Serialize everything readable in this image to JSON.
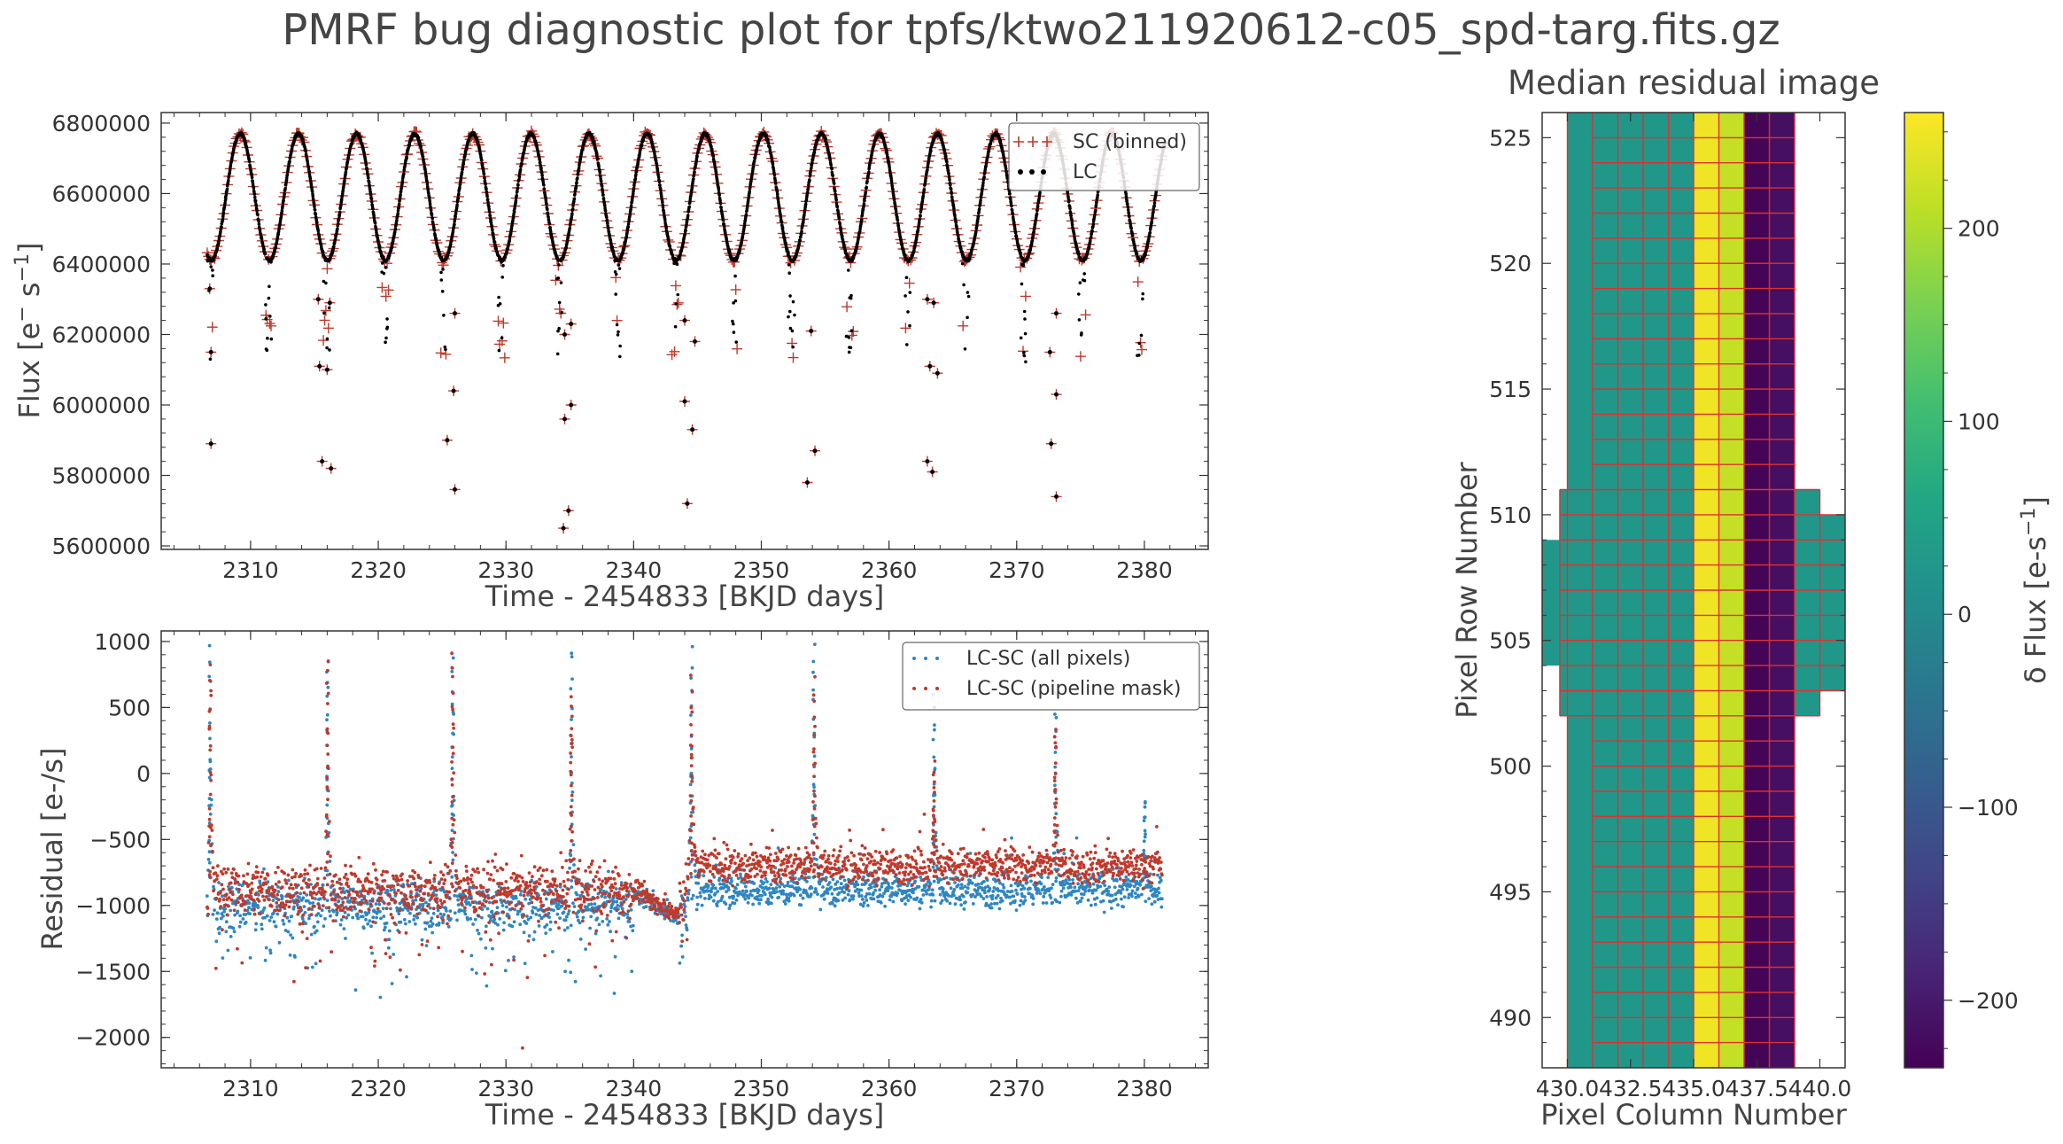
{
  "figure": {
    "suptitle": "PMRF bug diagnostic plot for tpfs/ktwo211920612-c05_spd-targ.fits.gz"
  },
  "colors": {
    "sc": "#c0392b",
    "lc": "#000000",
    "all_pixels": "#2e86c1",
    "pipeline_mask": "#c0392b",
    "grid_lines": "#e03030"
  },
  "chart_data": [
    {
      "type": "scatter",
      "id": "flux-panel",
      "title": "",
      "xlabel": "Time - 2454833 [BKJD days]",
      "ylabel": "Flux [e$^-$s$^{-1}$]",
      "xlim": [
        2303,
        2385
      ],
      "ylim": [
        5590000,
        6830000
      ],
      "xticks": [
        2310,
        2320,
        2330,
        2340,
        2350,
        2360,
        2370,
        2380
      ],
      "yticks": [
        5600000,
        5800000,
        6000000,
        6200000,
        6400000,
        6600000,
        6800000
      ],
      "legend": {
        "placement": "top-right",
        "entries": [
          "SC (binned)",
          "LC"
        ]
      },
      "series": [
        {
          "name": "SC (binned)",
          "marker": "plus-errorbar",
          "description_of_curve": "sinusoid period ~4.55 d, amplitude ~180000, mean ~6600000, with eclipse-like dips to ~6120000",
          "curve_peaks_x": [
            2309.2,
            2313.8,
            2318.3,
            2322.9,
            2327.4,
            2332.0,
            2336.5,
            2341.1,
            2345.6,
            2350.2,
            2354.7,
            2359.3,
            2363.8,
            2368.4,
            2372.9,
            2377.5
          ],
          "outliers": [
            [
              2306.8,
              6330000
            ],
            [
              2306.9,
              6150000
            ],
            [
              2306.9,
              5890000
            ],
            [
              2315.4,
              6110000
            ],
            [
              2316.0,
              6100000
            ],
            [
              2315.6,
              5840000
            ],
            [
              2316.3,
              5820000
            ],
            [
              2315.3,
              6300000
            ],
            [
              2316.2,
              6290000
            ],
            [
              2325.4,
              5900000
            ],
            [
              2325.9,
              6040000
            ],
            [
              2326.0,
              6260000
            ],
            [
              2326.0,
              5760000
            ],
            [
              2334.6,
              5960000
            ],
            [
              2334.6,
              6200000
            ],
            [
              2335.1,
              6000000
            ],
            [
              2335.1,
              6230000
            ],
            [
              2334.9,
              5700000
            ],
            [
              2334.5,
              5650000
            ],
            [
              2344.0,
              6010000
            ],
            [
              2344.0,
              6240000
            ],
            [
              2344.6,
              5930000
            ],
            [
              2344.8,
              6180000
            ],
            [
              2344.2,
              5720000
            ],
            [
              2353.6,
              5780000
            ],
            [
              2353.9,
              6210000
            ],
            [
              2354.2,
              5870000
            ],
            [
              2363.0,
              5840000
            ],
            [
              2363.4,
              5810000
            ],
            [
              2363.0,
              6300000
            ],
            [
              2363.5,
              6290000
            ],
            [
              2363.2,
              6110000
            ],
            [
              2363.8,
              6090000
            ],
            [
              2372.7,
              5890000
            ],
            [
              2372.6,
              6150000
            ],
            [
              2373.1,
              6030000
            ],
            [
              2373.1,
              5740000
            ],
            [
              2373.1,
              6260000
            ]
          ]
        },
        {
          "name": "LC",
          "marker": "dot",
          "description_of_curve": "same sinusoid as SC, sampled every ~0.02 d"
        }
      ]
    },
    {
      "type": "scatter",
      "id": "residual-panel",
      "title": "",
      "xlabel": "Time - 2454833 [BKJD days]",
      "ylabel": "Residual [e-/s]",
      "xlim": [
        2303,
        2385
      ],
      "ylim": [
        -2230,
        1080
      ],
      "xticks": [
        2310,
        2320,
        2330,
        2340,
        2350,
        2360,
        2370,
        2380
      ],
      "yticks": [
        -2000,
        -1500,
        -1000,
        -500,
        0,
        500,
        1000
      ],
      "legend": {
        "placement": "top-right",
        "entries": [
          "LC-SC (all pixels)",
          "LC-SC (pipeline mask)"
        ]
      },
      "series": [
        {
          "name": "LC-SC (all pixels)",
          "baseline_before_2344": -1000,
          "baseline_after_2344": -880,
          "spikes_x": [
            2306.8,
            2316.0,
            2325.8,
            2335.1,
            2344.5,
            2354.1,
            2363.5,
            2373.0,
            2380.0
          ],
          "spike_peaks": [
            950,
            880,
            920,
            940,
            920,
            960,
            560,
            550,
            -200
          ]
        },
        {
          "name": "LC-SC (pipeline mask)",
          "baseline_before_2344": -880,
          "baseline_after_2344": -700,
          "spikes_x": [
            2306.8,
            2316.0,
            2325.8,
            2335.1,
            2344.5,
            2354.1,
            2363.5,
            2373.0
          ],
          "spike_peaks": [
            820,
            860,
            880,
            600,
            700,
            700,
            60,
            350
          ],
          "outlier": [
            2331.3,
            -2080
          ]
        }
      ]
    },
    {
      "type": "heatmap",
      "id": "residual-image",
      "title": "Median residual image",
      "xlabel": "Pixel Column Number",
      "ylabel": "Pixel Row Number",
      "xlim": [
        429.0,
        441.0
      ],
      "ylim": [
        488.0,
        526.0
      ],
      "xticks": [
        "430.0",
        "432.5",
        "435.0",
        "437.5",
        "440.0"
      ],
      "yticks": [
        490,
        495,
        500,
        505,
        510,
        515,
        520,
        525
      ],
      "colormap": "viridis",
      "colorbar": {
        "label": "$\\delta$ Flux [e-s$^{-1}$]",
        "vmin": -235,
        "vmax": 260,
        "ticks": [
          -200,
          -100,
          0,
          100,
          200
        ],
        "tick_labels": [
          "−200",
          "−100",
          "0",
          "100",
          "200"
        ]
      },
      "column_values": [
        {
          "col": 430.5,
          "value": 25
        },
        {
          "col": 431.5,
          "value": 25
        },
        {
          "col": 432.5,
          "value": 25
        },
        {
          "col": 433.5,
          "value": 25
        },
        {
          "col": 434.5,
          "value": 25
        },
        {
          "col": 435.5,
          "value": 250
        },
        {
          "col": 436.5,
          "value": 215
        },
        {
          "col": 437.5,
          "value": -230
        },
        {
          "col": 438.5,
          "value": -215
        }
      ],
      "mask_regions": [
        {
          "cols": [
            430,
            439
          ],
          "rows": [
            488,
            526
          ]
        },
        {
          "cols": [
            429,
            430
          ],
          "rows": [
            504,
            509
          ]
        },
        {
          "cols": [
            429.7,
            430
          ],
          "rows": [
            502,
            511
          ]
        },
        {
          "cols": [
            439,
            440
          ],
          "rows": [
            502,
            511
          ]
        },
        {
          "cols": [
            440,
            441
          ],
          "rows": [
            503,
            510
          ]
        }
      ],
      "mask_description": "red grid of pipeline aperture: columns 431..439 full height; side extensions rows 502-511 (x 429.7-440) and rows 503-510 (x 440-441); left tab rows 504-509 from 429"
    }
  ]
}
